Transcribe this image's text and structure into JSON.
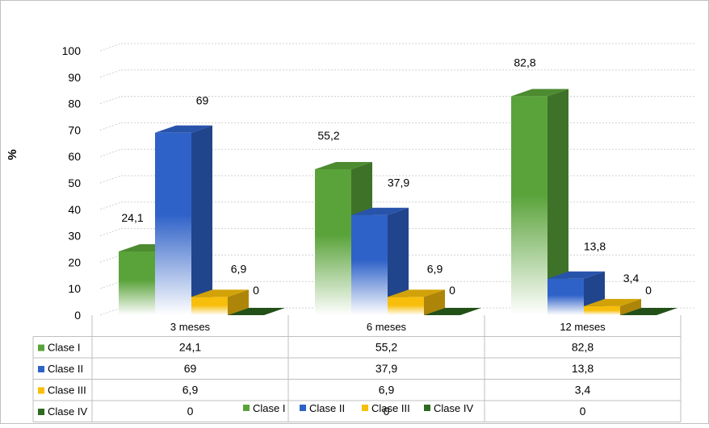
{
  "chart_data": {
    "type": "bar",
    "title": "",
    "ylabel": "%",
    "xlabel": "",
    "ylim": [
      0,
      100
    ],
    "yticks": [
      "0",
      "10",
      "20",
      "30",
      "40",
      "50",
      "60",
      "70",
      "80",
      "90",
      "100"
    ],
    "categories": [
      "3 meses",
      "6 meses",
      "12 meses"
    ],
    "series": [
      {
        "name": "Clase I",
        "values": [
          24.1,
          55.2,
          82.8
        ],
        "labels": [
          "24,1",
          "55,2",
          "82,8"
        ],
        "color": "#5aa33a"
      },
      {
        "name": "Clase II",
        "values": [
          69,
          37.9,
          13.8
        ],
        "labels": [
          "69",
          "37,9",
          "13,8"
        ],
        "color": "#2f62c8"
      },
      {
        "name": "Clase III",
        "values": [
          6.9,
          6.9,
          3.4
        ],
        "labels": [
          "6,9",
          "6,9",
          "3,4"
        ],
        "color": "#f7be0b"
      },
      {
        "name": "Clase IV",
        "values": [
          0,
          0,
          0
        ],
        "labels": [
          "0",
          "0",
          "0"
        ],
        "color": "#2d6b1f"
      }
    ],
    "legend": [
      "Clase I",
      "Clase II",
      "Clase III",
      "Clase IV"
    ]
  }
}
